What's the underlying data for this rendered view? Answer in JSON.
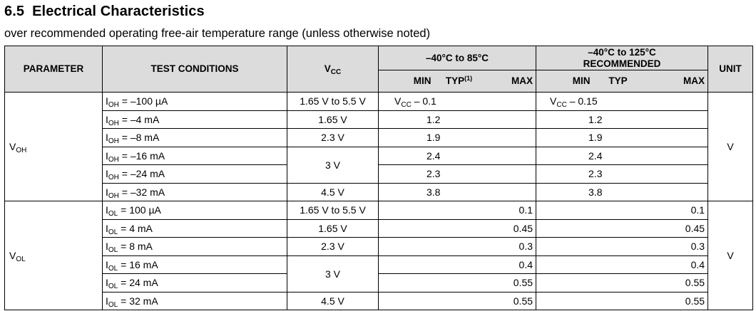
{
  "section": {
    "number": "6.5",
    "title": "Electrical Characteristics"
  },
  "subtitle": "over recommended operating free-air temperature range (unless otherwise noted)",
  "headers": {
    "parameter": "PARAMETER",
    "test_conditions": "TEST CONDITIONS",
    "vcc_main": "V",
    "vcc_sub": "CC",
    "range1": "–40°C to 85°C",
    "range2_line1": "–40°C to 125°C",
    "range2_line2": "RECOMMENDED",
    "unit": "UNIT",
    "min": "MIN",
    "typ": "TYP",
    "typ_note": "(1)",
    "max": "MAX"
  },
  "groups": [
    {
      "param_main": "V",
      "param_sub": "OH",
      "unit": "V",
      "rows": [
        {
          "cond_main": "I",
          "cond_sub": "OH",
          "cond_rest": " = –100 µA",
          "vcc": "1.65 V to 5.5 V",
          "r1_min": "V",
          "r1_min_sub": "CC",
          "r1_min_rest": " – 0.1",
          "r1_max": "",
          "r2_min": "V",
          "r2_min_sub": "CC",
          "r2_min_rest": " – 0.15",
          "r2_max": ""
        },
        {
          "cond_main": "I",
          "cond_sub": "OH",
          "cond_rest": " = –4 mA",
          "vcc": "1.65 V",
          "r1_min": "1.2",
          "r1_max": "",
          "r2_min": "1.2",
          "r2_max": ""
        },
        {
          "cond_main": "I",
          "cond_sub": "OH",
          "cond_rest": " = –8 mA",
          "vcc": "2.3 V",
          "r1_min": "1.9",
          "r1_max": "",
          "r2_min": "1.9",
          "r2_max": ""
        },
        {
          "cond_main": "I",
          "cond_sub": "OH",
          "cond_rest": " = –16 mA",
          "vcc": "3 V",
          "r1_min": "2.4",
          "r1_max": "",
          "r2_min": "2.4",
          "r2_max": ""
        },
        {
          "cond_main": "I",
          "cond_sub": "OH",
          "cond_rest": " = –24 mA",
          "vcc": "",
          "r1_min": "2.3",
          "r1_max": "",
          "r2_min": "2.3",
          "r2_max": ""
        },
        {
          "cond_main": "I",
          "cond_sub": "OH",
          "cond_rest": " = –32 mA",
          "vcc": "4.5 V",
          "r1_min": "3.8",
          "r1_max": "",
          "r2_min": "3.8",
          "r2_max": ""
        }
      ]
    },
    {
      "param_main": "V",
      "param_sub": "OL",
      "unit": "V",
      "rows": [
        {
          "cond_main": "I",
          "cond_sub": "OL",
          "cond_rest": " = 100 µA",
          "vcc": "1.65 V to 5.5 V",
          "r1_min": "",
          "r1_max": "0.1",
          "r2_min": "",
          "r2_max": "0.1"
        },
        {
          "cond_main": "I",
          "cond_sub": "OL",
          "cond_rest": " = 4 mA",
          "vcc": "1.65 V",
          "r1_min": "",
          "r1_max": "0.45",
          "r2_min": "",
          "r2_max": "0.45"
        },
        {
          "cond_main": "I",
          "cond_sub": "OL",
          "cond_rest": " = 8 mA",
          "vcc": "2.3 V",
          "r1_min": "",
          "r1_max": "0.3",
          "r2_min": "",
          "r2_max": "0.3"
        },
        {
          "cond_main": "I",
          "cond_sub": "OL",
          "cond_rest": " = 16 mA",
          "vcc": "3 V",
          "r1_min": "",
          "r1_max": "0.4",
          "r2_min": "",
          "r2_max": "0.4"
        },
        {
          "cond_main": "I",
          "cond_sub": "OL",
          "cond_rest": " = 24 mA",
          "vcc": "",
          "r1_min": "",
          "r1_max": "0.55",
          "r2_min": "",
          "r2_max": "0.55"
        },
        {
          "cond_main": "I",
          "cond_sub": "OL",
          "cond_rest": " = 32 mA",
          "vcc": "4.5 V",
          "r1_min": "",
          "r1_max": "0.55",
          "r2_min": "",
          "r2_max": "0.55"
        }
      ]
    }
  ]
}
